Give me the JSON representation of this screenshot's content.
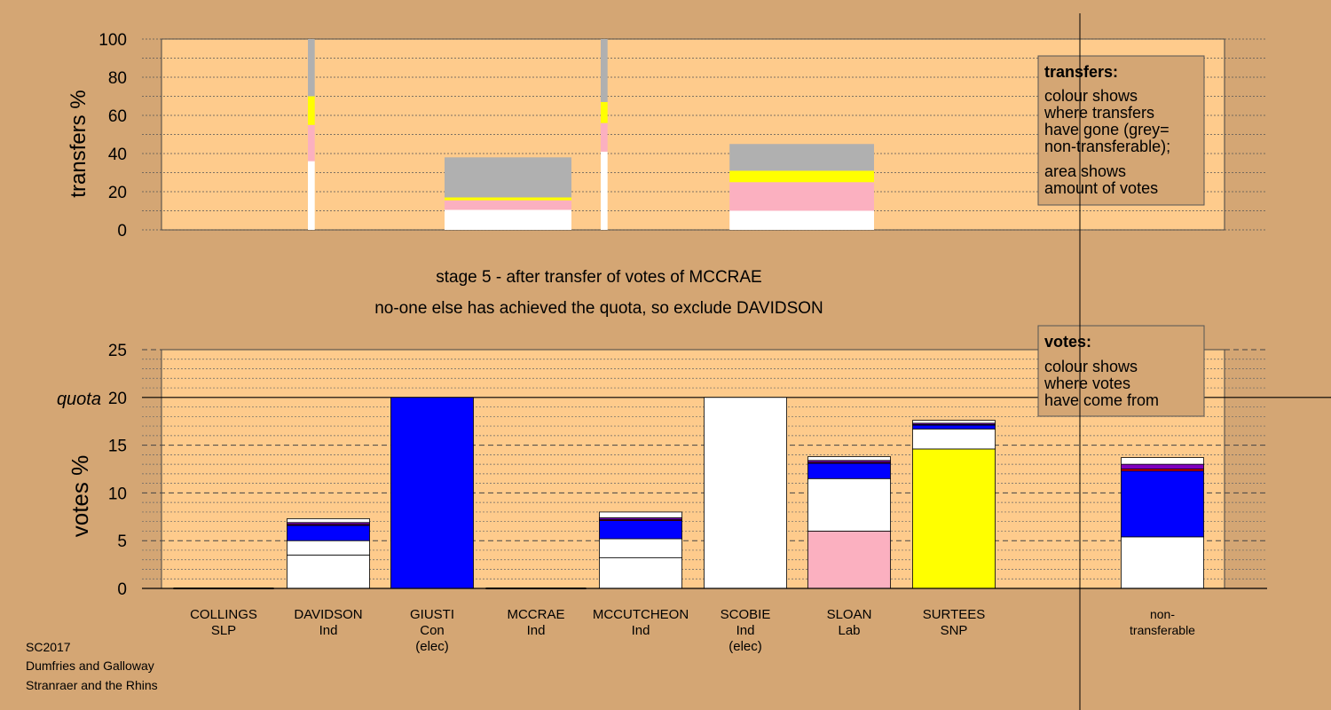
{
  "colors": {
    "page_bg": "#d4a674",
    "plot_bg": "#fecb8c",
    "white": "#ffffff",
    "grey": "#b0b0b0",
    "yellow": "#ffff00",
    "pink": "#fbb0c0",
    "blue": "#0000ff",
    "purple": "#8000c0",
    "red": "#ff0000",
    "dark": "#000000"
  },
  "footer": {
    "line1": "SC2017",
    "line2": "Dumfries and Galloway",
    "line3": "Stranraer and the Rhins"
  },
  "stage": {
    "line1": "stage 5 - after transfer of votes of MCCRAE",
    "line2": "no-one else has achieved the quota, so exclude DAVIDSON"
  },
  "legend_transfers": {
    "title": "transfers:",
    "lines": [
      "colour shows",
      "where transfers",
      "have gone (grey=",
      "non-transferable);",
      "area shows",
      "amount of votes"
    ]
  },
  "legend_votes": {
    "title": "votes:",
    "lines": [
      "colour shows",
      "where votes",
      "have come from"
    ]
  },
  "chart_data": [
    {
      "type": "bar",
      "chart": "transfers",
      "ylabel": "transfers %",
      "ylim": [
        0,
        100
      ],
      "yticks": [
        0,
        20,
        40,
        60,
        80,
        100
      ],
      "grid": "dotted",
      "legend_position": "top-right",
      "bars": [
        {
          "x": [
            1.5,
            1.57
          ],
          "segments": [
            {
              "color": "white",
              "value": 36
            },
            {
              "color": "pink",
              "value": 19
            },
            {
              "color": "yellow",
              "value": 15
            },
            {
              "color": "grey",
              "value": 30
            }
          ]
        },
        {
          "x": [
            2.9,
            4.2
          ],
          "segments": [
            {
              "color": "white",
              "value": 10.5
            },
            {
              "color": "pink",
              "value": 5
            },
            {
              "color": "yellow",
              "value": 1.5
            },
            {
              "color": "grey",
              "value": 21
            }
          ]
        },
        {
          "x": [
            4.5,
            4.57
          ],
          "segments": [
            {
              "color": "white",
              "value": 41
            },
            {
              "color": "pink",
              "value": 15
            },
            {
              "color": "yellow",
              "value": 11
            },
            {
              "color": "grey",
              "value": 33
            }
          ]
        },
        {
          "x": [
            5.82,
            7.3
          ],
          "segments": [
            {
              "color": "white",
              "value": 10
            },
            {
              "color": "pink",
              "value": 15
            },
            {
              "color": "yellow",
              "value": 6
            },
            {
              "color": "grey",
              "value": 14
            }
          ]
        }
      ]
    },
    {
      "type": "bar",
      "chart": "votes",
      "ylabel": "votes %",
      "ylim": [
        0,
        25
      ],
      "yticks": [
        0,
        5,
        10,
        15,
        20,
        25
      ],
      "quota": 20,
      "quota_label": "quota",
      "grid": "dashed",
      "legend_position": "top-right",
      "candidates": [
        {
          "name": "COLLINGS",
          "party": "SLP",
          "extra": "",
          "segments": []
        },
        {
          "name": "DAVIDSON",
          "party": "Ind",
          "extra": "",
          "segments": [
            {
              "color": "white",
              "value": 3.5
            },
            {
              "color": "white",
              "value": 1.5
            },
            {
              "color": "blue",
              "value": 1.6
            },
            {
              "color": "red",
              "value": 0.1
            },
            {
              "color": "purple",
              "value": 0.2
            },
            {
              "color": "white",
              "value": 0.4
            }
          ]
        },
        {
          "name": "GIUSTI",
          "party": "Con",
          "extra": "(elec)",
          "segments": [
            {
              "color": "blue",
              "value": 20
            }
          ]
        },
        {
          "name": "MCCRAE",
          "party": "Ind",
          "extra": "",
          "segments": []
        },
        {
          "name": "MCCUTCHEON",
          "party": "Ind",
          "extra": "",
          "segments": [
            {
              "color": "white",
              "value": 3.2
            },
            {
              "color": "white",
              "value": 2.0
            },
            {
              "color": "blue",
              "value": 1.9
            },
            {
              "color": "red",
              "value": 0.1
            },
            {
              "color": "purple",
              "value": 0.2
            },
            {
              "color": "white",
              "value": 0.6
            }
          ]
        },
        {
          "name": "SCOBIE",
          "party": "Ind",
          "extra": "(elec)",
          "segments": [
            {
              "color": "white",
              "value": 20
            }
          ]
        },
        {
          "name": "SLOAN",
          "party": "Lab",
          "extra": "",
          "segments": [
            {
              "color": "pink",
              "value": 6.0
            },
            {
              "color": "white",
              "value": 5.5
            },
            {
              "color": "blue",
              "value": 1.6
            },
            {
              "color": "red",
              "value": 0.1
            },
            {
              "color": "purple",
              "value": 0.2
            },
            {
              "color": "white",
              "value": 0.4
            }
          ]
        },
        {
          "name": "SURTEES",
          "party": "SNP",
          "extra": "",
          "segments": [
            {
              "color": "yellow",
              "value": 14.6
            },
            {
              "color": "white",
              "value": 2.1
            },
            {
              "color": "blue",
              "value": 0.4
            },
            {
              "color": "red",
              "value": 0.05
            },
            {
              "color": "purple",
              "value": 0.15
            },
            {
              "color": "white",
              "value": 0.3
            }
          ]
        },
        {
          "name": "non-",
          "party": "transferable",
          "extra": "",
          "segments": [
            {
              "color": "white",
              "value": 5.4
            },
            {
              "color": "blue",
              "value": 6.9
            },
            {
              "color": "red",
              "value": 0.2
            },
            {
              "color": "purple",
              "value": 0.5
            },
            {
              "color": "white",
              "value": 0.7
            }
          ]
        }
      ]
    }
  ]
}
